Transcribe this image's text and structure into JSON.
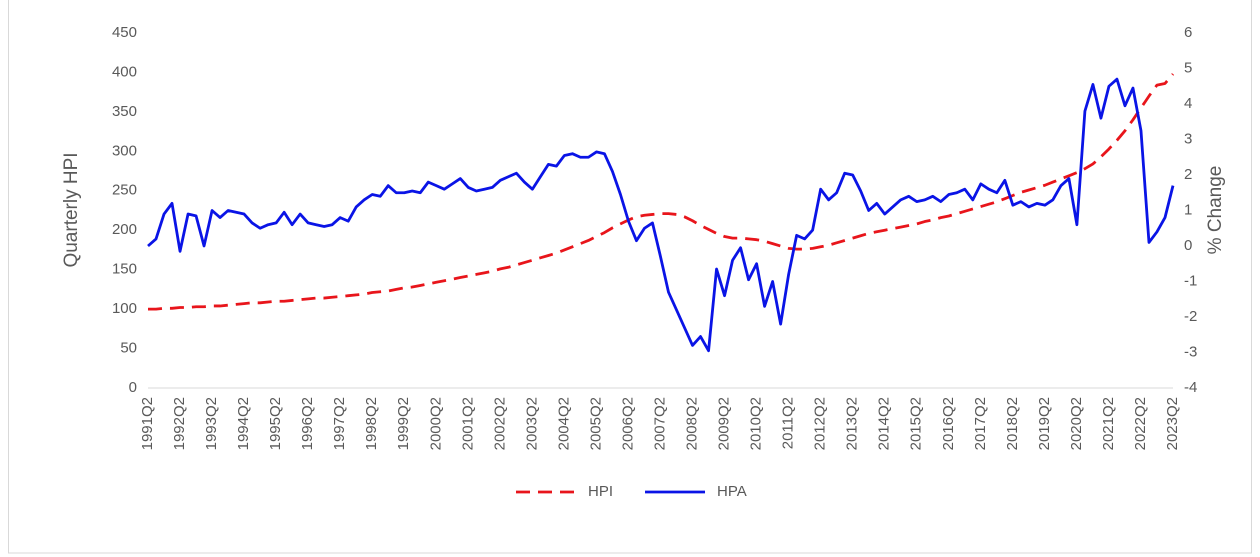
{
  "chart_data": {
    "type": "line",
    "y_label": "Quarterly HPI",
    "y2_label": "% Change",
    "ylim": [
      0,
      450
    ],
    "yticks": [
      0,
      50,
      100,
      150,
      200,
      250,
      300,
      350,
      400,
      450
    ],
    "y2lim": [
      -4,
      6
    ],
    "y2ticks": [
      -4,
      -3,
      -2,
      -1,
      0,
      1,
      2,
      3,
      4,
      5,
      6
    ],
    "legend": "bottom",
    "grid": false,
    "categories": [
      "1991Q2",
      null,
      null,
      null,
      "1992Q2",
      null,
      null,
      null,
      "1993Q2",
      null,
      null,
      null,
      "1994Q2",
      null,
      null,
      null,
      "1995Q2",
      null,
      null,
      null,
      "1996Q2",
      null,
      null,
      null,
      "1997Q2",
      null,
      null,
      null,
      "1998Q2",
      null,
      null,
      null,
      "1999Q2",
      null,
      null,
      null,
      "2000Q2",
      null,
      null,
      null,
      "2001Q2",
      null,
      null,
      null,
      "2002Q2",
      null,
      null,
      null,
      "2003Q2",
      null,
      null,
      null,
      "2004Q2",
      null,
      null,
      null,
      "2005Q2",
      null,
      null,
      null,
      "2006Q2",
      null,
      null,
      null,
      "2007Q2",
      null,
      null,
      null,
      "2008Q2",
      null,
      null,
      null,
      "2009Q2",
      null,
      null,
      null,
      "2010Q2",
      null,
      null,
      null,
      "2011Q2",
      null,
      null,
      null,
      "2012Q2",
      null,
      null,
      null,
      "2013Q2",
      null,
      null,
      null,
      "2014Q2",
      null,
      null,
      null,
      "2015Q2",
      null,
      null,
      null,
      "2016Q2",
      null,
      null,
      null,
      "2017Q2",
      null,
      null,
      null,
      "2018Q2",
      null,
      null,
      null,
      "2019Q2",
      null,
      null,
      null,
      "2020Q2",
      null,
      null,
      null,
      "2021Q2",
      null,
      null,
      null,
      "2022Q2",
      null,
      null,
      null,
      "2023Q2"
    ],
    "series": [
      {
        "name": "HPI",
        "color": "#e8151b",
        "dashed": true,
        "axis": "y",
        "values": [
          100,
          100,
          101,
          101,
          102,
          102,
          103,
          103,
          104,
          104,
          105,
          106,
          107,
          108,
          108,
          109,
          110,
          110,
          111,
          112,
          113,
          114,
          114,
          115,
          116,
          117,
          118,
          119,
          121,
          122,
          123,
          125,
          127,
          128,
          130,
          132,
          134,
          136,
          138,
          140,
          142,
          144,
          146,
          148,
          151,
          153,
          156,
          159,
          162,
          165,
          168,
          171,
          175,
          179,
          183,
          187,
          192,
          197,
          203,
          208,
          213,
          217,
          219,
          220,
          221,
          221,
          220,
          217,
          212,
          206,
          201,
          196,
          192,
          190,
          190,
          189,
          188,
          186,
          183,
          180,
          177,
          176,
          176,
          177,
          179,
          181,
          184,
          187,
          190,
          193,
          196,
          198,
          200,
          202,
          204,
          206,
          208,
          211,
          213,
          216,
          218,
          221,
          224,
          227,
          230,
          233,
          236,
          240,
          244,
          248,
          251,
          254,
          257,
          261,
          265,
          269,
          273,
          278,
          284,
          293,
          303,
          314,
          326,
          340,
          355,
          370,
          384,
          386,
          398
        ]
      },
      {
        "name": "HPA",
        "color": "#0a14e6",
        "dashed": false,
        "axis": "y2",
        "values": [
          0.0,
          0.2,
          0.9,
          1.2,
          -0.15,
          0.9,
          0.85,
          0.0,
          1.0,
          0.8,
          1.0,
          0.95,
          0.9,
          0.65,
          0.5,
          0.6,
          0.65,
          0.95,
          0.6,
          0.9,
          0.65,
          0.6,
          0.55,
          0.6,
          0.8,
          0.7,
          1.1,
          1.3,
          1.45,
          1.4,
          1.7,
          1.5,
          1.5,
          1.55,
          1.5,
          1.8,
          1.7,
          1.6,
          1.75,
          1.9,
          1.65,
          1.55,
          1.6,
          1.65,
          1.85,
          1.95,
          2.05,
          1.8,
          1.6,
          1.95,
          2.3,
          2.25,
          2.55,
          2.6,
          2.5,
          2.5,
          2.65,
          2.6,
          2.1,
          1.45,
          0.7,
          0.15,
          0.5,
          0.65,
          -0.3,
          -1.3,
          -1.8,
          -2.3,
          -2.8,
          -2.55,
          -2.95,
          -0.65,
          -1.4,
          -0.4,
          -0.05,
          -0.95,
          -0.5,
          -1.7,
          -1.0,
          -2.2,
          -0.8,
          0.3,
          0.2,
          0.45,
          1.6,
          1.3,
          1.5,
          2.05,
          2.0,
          1.55,
          1.0,
          1.2,
          0.9,
          1.1,
          1.3,
          1.4,
          1.25,
          1.3,
          1.4,
          1.25,
          1.45,
          1.5,
          1.6,
          1.3,
          1.75,
          1.6,
          1.5,
          1.85,
          1.15,
          1.25,
          1.1,
          1.2,
          1.15,
          1.3,
          1.7,
          1.9,
          0.6,
          3.8,
          4.55,
          3.6,
          4.5,
          4.7,
          3.95,
          4.45,
          3.25,
          0.1,
          0.4,
          0.8,
          1.7
        ]
      }
    ]
  }
}
